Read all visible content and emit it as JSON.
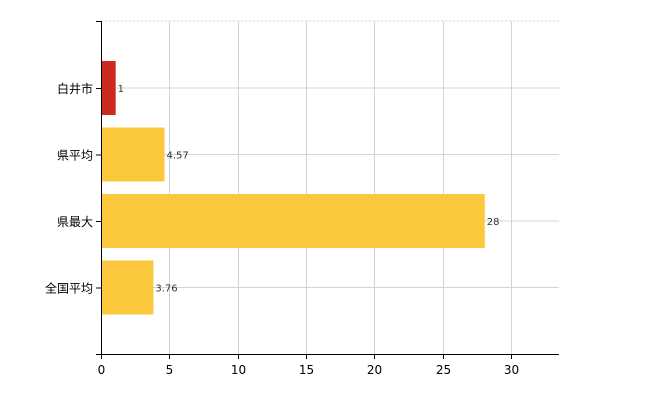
{
  "chart_data": {
    "type": "bar",
    "orientation": "horizontal",
    "categories": [
      "白井市",
      "県平均",
      "県最大",
      "全国平均"
    ],
    "values": [
      1,
      4.57,
      28,
      3.76
    ],
    "data_labels": [
      "1",
      "4.57",
      "28",
      "3.76"
    ],
    "bar_colors": [
      "#cc2a1e",
      "#fbc83d",
      "#fbc83d",
      "#fbc83d"
    ],
    "xlim": [
      0,
      33.5
    ],
    "xticks": [
      0,
      5,
      10,
      15,
      20,
      25,
      30
    ],
    "xtick_labels": [
      "0",
      "5",
      "10",
      "15",
      "20",
      "25",
      "30"
    ],
    "title": "",
    "xlabel": "",
    "ylabel": "",
    "grid": true,
    "legend": "none"
  }
}
